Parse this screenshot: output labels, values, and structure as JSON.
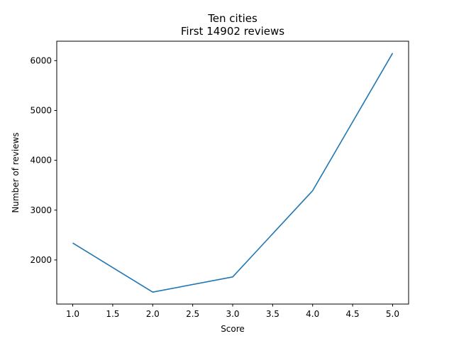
{
  "chart_data": {
    "type": "line",
    "title": "Ten cities",
    "subtitle": "First 14902 reviews",
    "xlabel": "Score",
    "ylabel": "Number of reviews",
    "x": [
      1.0,
      2.0,
      3.0,
      4.0,
      5.0
    ],
    "series": [
      {
        "values": [
          2340,
          1355,
          1660,
          3390,
          6150
        ],
        "color": "#1f77b4"
      }
    ],
    "xlim": [
      0.8,
      5.2
    ],
    "ylim": [
      1115,
      6390
    ],
    "xticks": [
      1.0,
      1.5,
      2.0,
      2.5,
      3.0,
      3.5,
      4.0,
      4.5,
      5.0
    ],
    "xtick_labels": [
      "1.0",
      "1.5",
      "2.0",
      "2.5",
      "3.0",
      "3.5",
      "4.0",
      "4.5",
      "5.0"
    ],
    "yticks": [
      2000,
      3000,
      4000,
      5000,
      6000
    ],
    "ytick_labels": [
      "2000",
      "3000",
      "4000",
      "5000",
      "6000"
    ],
    "grid": false,
    "legend": "none"
  }
}
